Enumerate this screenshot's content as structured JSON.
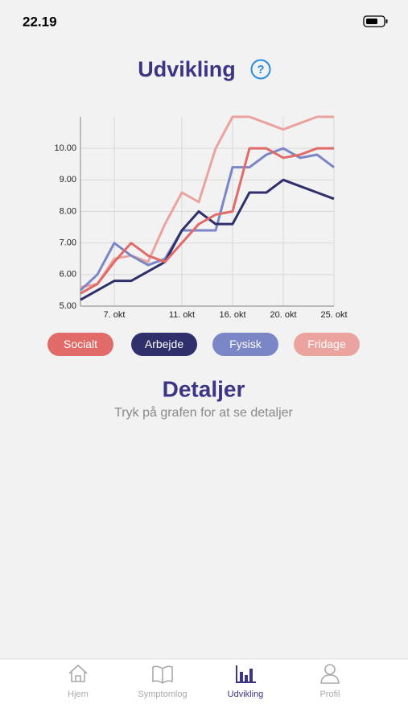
{
  "status_bar": {
    "time": "22.19"
  },
  "header": {
    "title": "Udvikling",
    "help_icon": "?"
  },
  "chart_data": {
    "type": "line",
    "categories": [
      null,
      null,
      "7. okt",
      null,
      null,
      null,
      "11. okt",
      null,
      null,
      "16. okt",
      null,
      null,
      "20. okt",
      null,
      null,
      "25. okt"
    ],
    "series": [
      {
        "name": "Socialt",
        "color": "#e06b68",
        "values": [
          5.4,
          5.7,
          6.4,
          7.0,
          6.6,
          6.4,
          7.0,
          7.6,
          7.9,
          8.0,
          10.0,
          10.0,
          9.7,
          9.8,
          10.0,
          10.0
        ]
      },
      {
        "name": "Arbejde",
        "color": "#2e2f6b",
        "values": [
          5.2,
          5.5,
          5.8,
          5.8,
          6.1,
          6.4,
          7.4,
          8.0,
          7.6,
          7.6,
          8.6,
          8.6,
          9.0,
          8.8,
          8.6,
          8.4
        ]
      },
      {
        "name": "Fysisk",
        "color": "#7b86c6",
        "values": [
          5.5,
          6.0,
          7.0,
          6.6,
          6.3,
          6.5,
          7.4,
          7.4,
          7.4,
          9.4,
          9.4,
          9.8,
          10.0,
          9.7,
          9.8,
          9.4
        ]
      },
      {
        "name": "Fridage",
        "color": "#eba39f",
        "values": [
          5.6,
          5.7,
          6.5,
          6.6,
          6.4,
          7.6,
          8.6,
          8.3,
          10.0,
          11.0,
          11.0,
          10.8,
          10.6,
          10.8,
          11.0,
          11.0
        ]
      }
    ],
    "ylim": [
      5,
      11
    ],
    "yticks": [
      {
        "value": 5,
        "label": "5.00"
      },
      {
        "value": 6,
        "label": "6.00"
      },
      {
        "value": 7,
        "label": "7.00"
      },
      {
        "value": 8,
        "label": "8.00"
      },
      {
        "value": 9,
        "label": "9.00"
      },
      {
        "value": 10,
        "label": "10.00"
      }
    ],
    "grid": true
  },
  "details": {
    "title": "Detaljer",
    "subtitle": "Tryk på grafen for at se detaljer"
  },
  "tab_bar": {
    "items": [
      "Hjem",
      "Symptomlog",
      "Udvikling",
      "Profil"
    ],
    "active": 2
  }
}
